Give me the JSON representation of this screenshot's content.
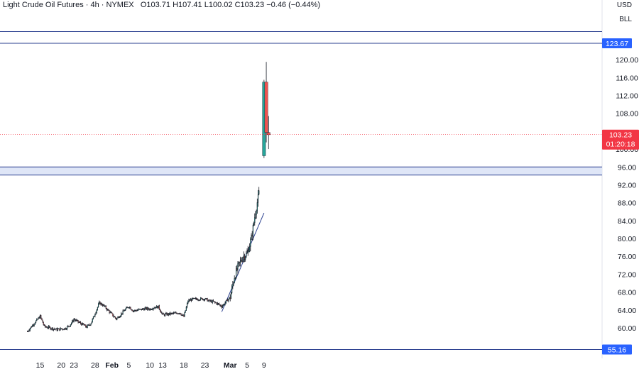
{
  "legend": {
    "symbol": "Light Crude Oil Futures · 4h · NYMEX",
    "open": "O103.71",
    "high": "H107.41",
    "low": "L100.02",
    "close": "C103.23",
    "change": "−0.46 (−0.44%)"
  },
  "units": {
    "currency": "USD",
    "measure": "BLL"
  },
  "colors": {
    "up": "#26a69a",
    "down": "#ef5350",
    "line": "#2a3f8f",
    "label_bg": "#2962ff",
    "price_bg": "#f23645"
  },
  "chart_data": {
    "type": "candlestick",
    "ylim": [
      56.5,
      123.67
    ],
    "y_ticks": [
      "120.00",
      "116.00",
      "112.00",
      "108.00",
      "100.00",
      "96.00",
      "92.00",
      "88.00",
      "84.00",
      "80.00",
      "76.00",
      "72.00",
      "68.00",
      "64.00",
      "60.00"
    ],
    "x_ticks": [
      "15",
      "20",
      "23",
      "28",
      "Feb",
      "5",
      "10",
      "13",
      "18",
      "23",
      "Mar",
      "5",
      "9"
    ],
    "horizontal_levels": [
      {
        "label": "123.67",
        "value": 123.67
      },
      {
        "label": "55.16",
        "value": 55.16
      }
    ],
    "plain_levels": [
      126.3,
      96.0,
      94.2
    ],
    "zone": [
      94.2,
      96.0
    ],
    "trendline": [
      {
        "date": "Feb 27",
        "price": 63.6
      },
      {
        "date": "Mar 9",
        "price": 85.7
      }
    ],
    "current_price": {
      "value": 103.23,
      "label": "103.23",
      "countdown": "01:20:18"
    },
    "anchors": [
      {
        "d": "Jan 12",
        "p": 59.2
      },
      {
        "d": "Jan 14",
        "p": 61.5
      },
      {
        "d": "Jan 15",
        "p": 62.6
      },
      {
        "d": "Jan 16",
        "p": 60.3
      },
      {
        "d": "Jan 19",
        "p": 59.6
      },
      {
        "d": "Jan 21",
        "p": 59.9
      },
      {
        "d": "Jan 22",
        "p": 60.6
      },
      {
        "d": "Jan 23",
        "p": 61.9
      },
      {
        "d": "Jan 26",
        "p": 60.2
      },
      {
        "d": "Jan 27",
        "p": 61.0
      },
      {
        "d": "Jan 28",
        "p": 63.2
      },
      {
        "d": "Jan 29",
        "p": 65.6
      },
      {
        "d": "Jan 30",
        "p": 65.0
      },
      {
        "d": "Feb 2",
        "p": 62.0
      },
      {
        "d": "Feb 3",
        "p": 62.9
      },
      {
        "d": "Feb 4",
        "p": 64.0
      },
      {
        "d": "Feb 5",
        "p": 64.8
      },
      {
        "d": "Feb 6",
        "p": 63.8
      },
      {
        "d": "Feb 9",
        "p": 64.3
      },
      {
        "d": "Feb 10",
        "p": 64.2
      },
      {
        "d": "Feb 11",
        "p": 64.6
      },
      {
        "d": "Feb 12",
        "p": 64.7
      },
      {
        "d": "Feb 13",
        "p": 62.9
      },
      {
        "d": "Feb 17",
        "p": 63.4
      },
      {
        "d": "Feb 18",
        "p": 62.5
      },
      {
        "d": "Feb 19",
        "p": 66.0
      },
      {
        "d": "Feb 20",
        "p": 66.4
      },
      {
        "d": "Feb 23",
        "p": 66.5
      },
      {
        "d": "Feb 24",
        "p": 66.0
      },
      {
        "d": "Feb 25",
        "p": 65.8
      },
      {
        "d": "Feb 26",
        "p": 65.4
      },
      {
        "d": "Feb 27",
        "p": 64.8
      },
      {
        "d": "Mar 1",
        "p": 66.9
      },
      {
        "d": "Mar 2",
        "p": 71.5
      },
      {
        "d": "Mar 3",
        "p": 74.0
      },
      {
        "d": "Mar 4",
        "p": 76.0
      },
      {
        "d": "Mar 5",
        "p": 76.5
      },
      {
        "d": "Mar 6",
        "p": 80.0
      },
      {
        "d": "Mar 7",
        "p": 86.0
      },
      {
        "d": "Mar 8",
        "p": 91.2
      }
    ],
    "last_candles": [
      {
        "o": 98.5,
        "h": 115.5,
        "l": 98.0,
        "c": 115.0
      },
      {
        "o": 115.0,
        "h": 119.5,
        "l": 101.5,
        "c": 103.7
      },
      {
        "o": 103.7,
        "h": 107.4,
        "l": 100.0,
        "c": 103.2
      }
    ]
  }
}
